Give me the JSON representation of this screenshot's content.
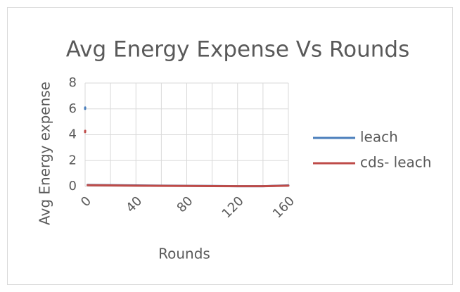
{
  "chart_data": {
    "type": "line",
    "title": "Avg Energy Expense Vs Rounds",
    "xlabel": "Rounds",
    "ylabel": "Avg Energy expense",
    "x": [
      0,
      1,
      2,
      20,
      40,
      60,
      80,
      100,
      120,
      140,
      160
    ],
    "series": [
      {
        "name": "leach",
        "color": "#4a7ebb",
        "values": [
          6,
          null,
          0.12,
          0.1,
          0.08,
          0.06,
          0.05,
          0.04,
          0.02,
          0.02,
          0.08
        ]
      },
      {
        "name": "cds- leach",
        "color": "#be4b48",
        "values": [
          4.2,
          null,
          0.1,
          0.08,
          0.06,
          0.05,
          0.04,
          0.03,
          0.02,
          0.02,
          0.06
        ]
      }
    ],
    "xlim": [
      0,
      160
    ],
    "xticks": [
      0,
      40,
      80,
      120,
      160
    ],
    "xgrid": [
      0,
      20,
      40,
      60,
      80,
      100,
      120,
      140,
      160
    ],
    "ylim": [
      0,
      8
    ],
    "yticks": [
      0,
      2,
      4,
      6,
      8
    ],
    "grid": true,
    "legend": "right"
  }
}
